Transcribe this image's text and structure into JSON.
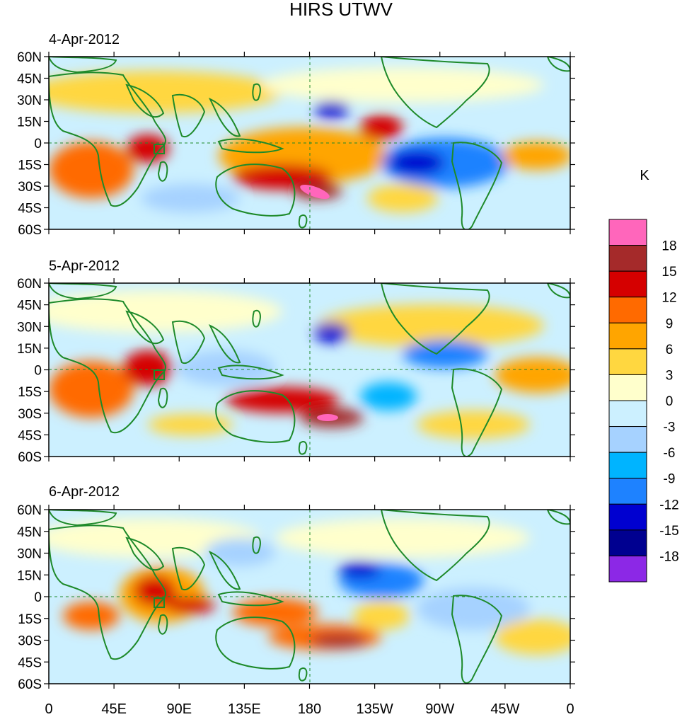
{
  "title": "HIRS UTWV",
  "panels": [
    {
      "date": "4-Apr-2012"
    },
    {
      "date": "5-Apr-2012"
    },
    {
      "date": "6-Apr-2012"
    }
  ],
  "lat_labels": [
    "60N",
    "45N",
    "30N",
    "15N",
    "0",
    "15S",
    "30S",
    "45S",
    "60S"
  ],
  "lon_labels": [
    "0",
    "45E",
    "90E",
    "135E",
    "180",
    "135W",
    "90W",
    "45W",
    "0"
  ],
  "colorbar": {
    "unit": "K",
    "tick_labels": [
      "18",
      "15",
      "12",
      "9",
      "6",
      "3",
      "0",
      "-3",
      "-6",
      "-9",
      "-12",
      "-15",
      "-18"
    ],
    "colors": [
      "#ff66bb",
      "#a52a2a",
      "#d50000",
      "#ff6a00",
      "#ffa500",
      "#ffd740",
      "#ffffcc",
      "#ccf0ff",
      "#a6d2ff",
      "#00b4ff",
      "#1e82ff",
      "#0000d0",
      "#000090",
      "#8c28e6"
    ]
  },
  "colors": {
    "coastline": "#1e8a2a",
    "frame": "#000000"
  }
}
